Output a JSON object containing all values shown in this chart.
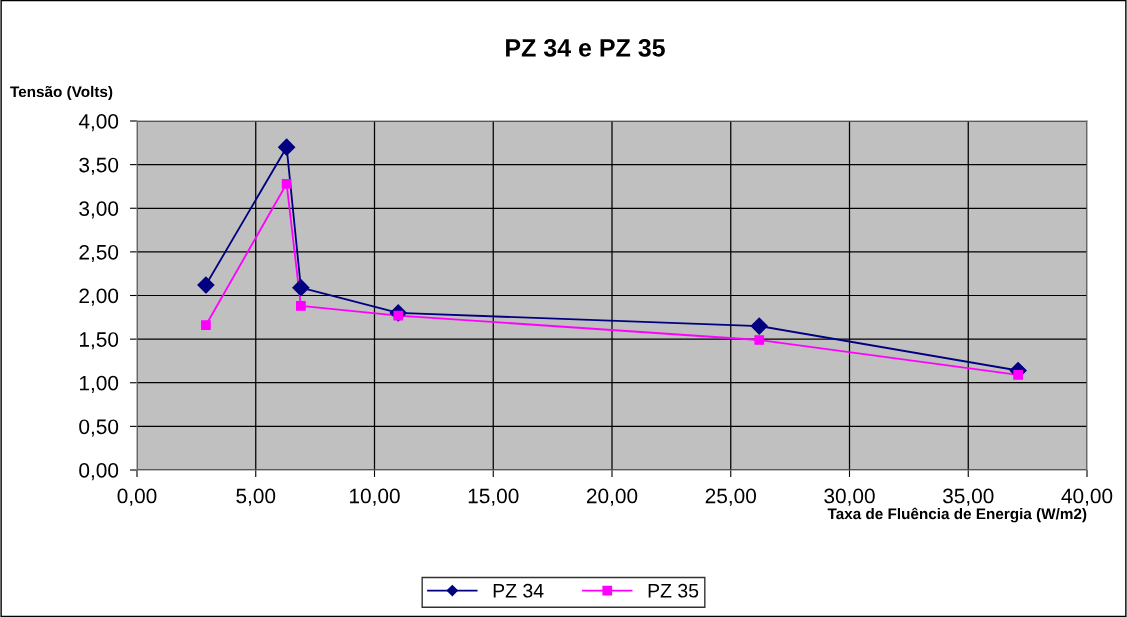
{
  "chart_data": {
    "type": "line",
    "title": "PZ 34 e PZ 35",
    "xlabel": "Taxa de Fluência de Energia (W/m2)",
    "ylabel": "Tensão (Volts)",
    "xlim": [
      0,
      40
    ],
    "ylim": [
      0,
      4
    ],
    "xticks": [
      {
        "value": 0,
        "label": "0,00"
      },
      {
        "value": 5,
        "label": "5,00"
      },
      {
        "value": 10,
        "label": "10,00"
      },
      {
        "value": 15,
        "label": "15,00"
      },
      {
        "value": 20,
        "label": "20,00"
      },
      {
        "value": 25,
        "label": "25,00"
      },
      {
        "value": 30,
        "label": "30,00"
      },
      {
        "value": 35,
        "label": "35,00"
      },
      {
        "value": 40,
        "label": "40,00"
      }
    ],
    "yticks": [
      {
        "value": 0,
        "label": "0,00"
      },
      {
        "value": 0.5,
        "label": "0,50"
      },
      {
        "value": 1,
        "label": "1,00"
      },
      {
        "value": 1.5,
        "label": "1,50"
      },
      {
        "value": 2,
        "label": "2,00"
      },
      {
        "value": 2.5,
        "label": "2,50"
      },
      {
        "value": 3,
        "label": "3,00"
      },
      {
        "value": 3.5,
        "label": "3,50"
      },
      {
        "value": 4,
        "label": "4,00"
      }
    ],
    "grid": true,
    "legend": "bottom",
    "line_style": "solid",
    "series": [
      {
        "name": "PZ 34",
        "color": "#000080",
        "marker": "diamond",
        "x": [
          2.9,
          6.3,
          6.9,
          11.0,
          26.2,
          37.1
        ],
        "values": [
          2.12,
          3.7,
          2.09,
          1.8,
          1.65,
          1.14
        ]
      },
      {
        "name": "PZ 35",
        "color": "#ff00ff",
        "marker": "square",
        "x": [
          2.9,
          6.3,
          6.9,
          11.0,
          26.2,
          37.1
        ],
        "values": [
          1.66,
          3.28,
          1.88,
          1.77,
          1.49,
          1.09
        ]
      }
    ]
  }
}
